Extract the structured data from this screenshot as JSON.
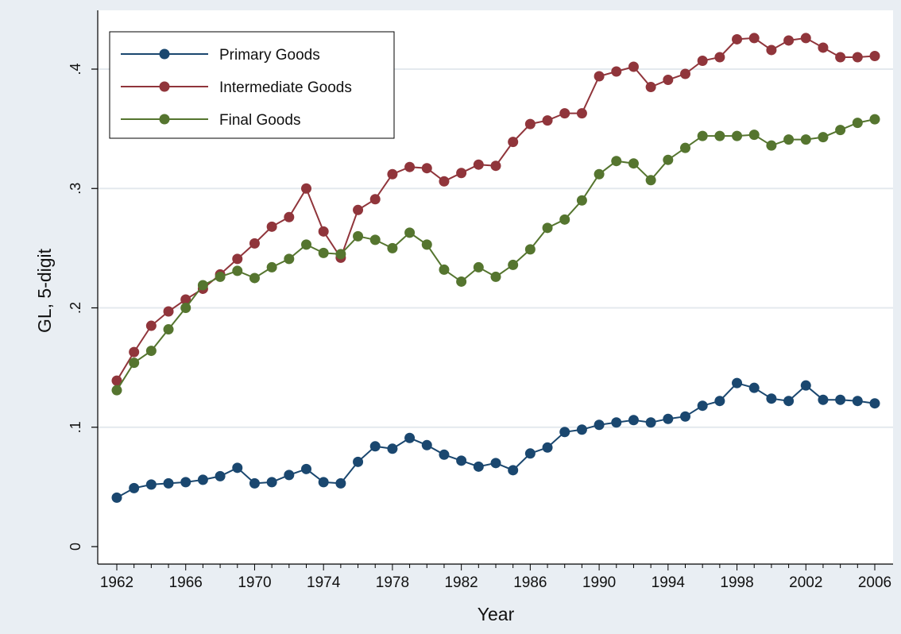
{
  "chart_data": {
    "type": "line",
    "xlabel": "Year",
    "ylabel": "GL, 5-digit",
    "xlim": [
      1962,
      2006
    ],
    "ylim": [
      0,
      0.44
    ],
    "x_ticks": [
      1962,
      1966,
      1970,
      1974,
      1978,
      1982,
      1986,
      1990,
      1994,
      1998,
      2002,
      2006
    ],
    "y_ticks": [
      0,
      0.1,
      0.2,
      0.3,
      0.4
    ],
    "y_tick_labels": [
      "0",
      ".1",
      ".2",
      ".3",
      ".4"
    ],
    "grid": "horizontal",
    "legend_position": "top-left",
    "x": [
      1962,
      1963,
      1964,
      1965,
      1966,
      1967,
      1968,
      1969,
      1970,
      1971,
      1972,
      1973,
      1974,
      1975,
      1976,
      1977,
      1978,
      1979,
      1980,
      1981,
      1982,
      1983,
      1984,
      1985,
      1986,
      1987,
      1988,
      1989,
      1990,
      1991,
      1992,
      1993,
      1994,
      1995,
      1996,
      1997,
      1998,
      1999,
      2000,
      2001,
      2002,
      2003,
      2004,
      2005,
      2006
    ],
    "series": [
      {
        "name": "Primary Goods",
        "color": "#1a476f",
        "values": [
          0.041,
          0.049,
          0.052,
          0.053,
          0.054,
          0.056,
          0.059,
          0.066,
          0.053,
          0.054,
          0.06,
          0.065,
          0.054,
          0.053,
          0.071,
          0.084,
          0.082,
          0.091,
          0.085,
          0.077,
          0.072,
          0.067,
          0.07,
          0.064,
          0.078,
          0.083,
          0.096,
          0.098,
          0.102,
          0.104,
          0.106,
          0.104,
          0.107,
          0.109,
          0.118,
          0.122,
          0.137,
          0.133,
          0.124,
          0.122,
          0.135,
          0.123,
          0.123,
          0.122,
          0.12
        ]
      },
      {
        "name": "Intermediate Goods",
        "color": "#90353b",
        "values": [
          0.139,
          0.163,
          0.185,
          0.197,
          0.207,
          0.216,
          0.228,
          0.241,
          0.254,
          0.268,
          0.276,
          0.3,
          0.264,
          0.242,
          0.282,
          0.291,
          0.312,
          0.318,
          0.317,
          0.306,
          0.313,
          0.32,
          0.319,
          0.339,
          0.354,
          0.357,
          0.363,
          0.363,
          0.394,
          0.398,
          0.402,
          0.385,
          0.391,
          0.396,
          0.407,
          0.41,
          0.425,
          0.426,
          0.416,
          0.424,
          0.426,
          0.418,
          0.41,
          0.41,
          0.411
        ]
      },
      {
        "name": "Final Goods",
        "color": "#55752f",
        "values": [
          0.131,
          0.154,
          0.164,
          0.182,
          0.2,
          0.219,
          0.226,
          0.231,
          0.225,
          0.234,
          0.241,
          0.253,
          0.246,
          0.245,
          0.26,
          0.257,
          0.25,
          0.263,
          0.253,
          0.232,
          0.222,
          0.234,
          0.226,
          0.236,
          0.249,
          0.267,
          0.274,
          0.29,
          0.312,
          0.323,
          0.321,
          0.307,
          0.324,
          0.334,
          0.344,
          0.344,
          0.344,
          0.345,
          0.336,
          0.341,
          0.341,
          0.343,
          0.349,
          0.355,
          0.358
        ]
      }
    ]
  }
}
